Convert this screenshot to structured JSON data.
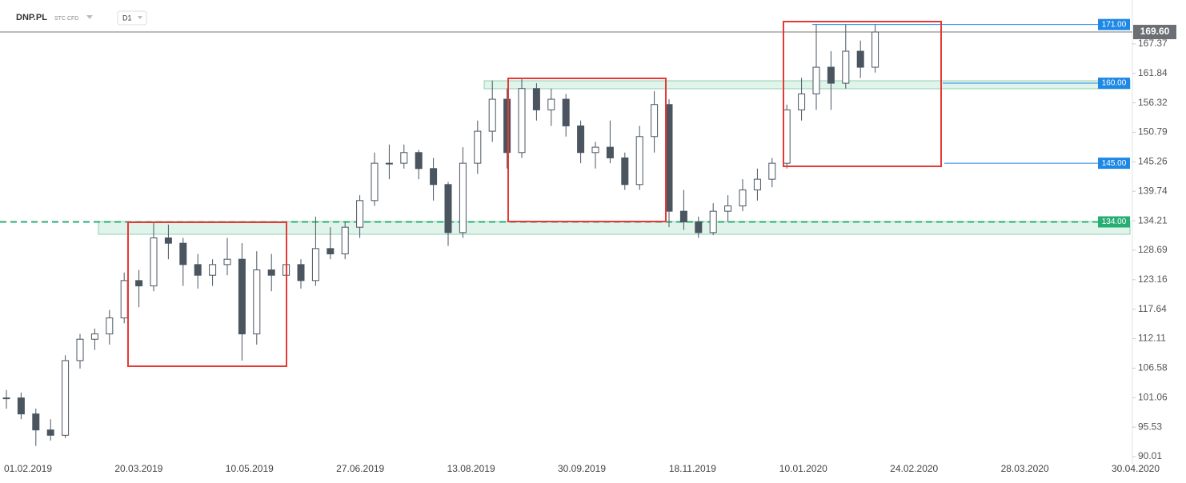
{
  "chart_data": {
    "type": "candlestick",
    "symbol": "DNP.PL",
    "instrument": "STC CFD",
    "timeframe": "D1",
    "x_labels": [
      "01.02.2019",
      "20.03.2019",
      "10.05.2019",
      "27.06.2019",
      "13.08.2019",
      "30.09.2019",
      "18.11.2019",
      "10.01.2020",
      "24.02.2020",
      "28.03.2020",
      "30.04.2020"
    ],
    "ohlc": [
      [
        101,
        102.5,
        99,
        101
      ],
      [
        101,
        102,
        97,
        98
      ],
      [
        98,
        99,
        92,
        95
      ],
      [
        95,
        97,
        93,
        94
      ],
      [
        94,
        109,
        93.5,
        108
      ],
      [
        108,
        113,
        106.5,
        112
      ],
      [
        112,
        114,
        110,
        113
      ],
      [
        113,
        117.5,
        111,
        116
      ],
      [
        116,
        124.5,
        115,
        123
      ],
      [
        123,
        125,
        118,
        122
      ],
      [
        122,
        134,
        121,
        131
      ],
      [
        131,
        133.5,
        127,
        130
      ],
      [
        130,
        131,
        122,
        126
      ],
      [
        126,
        128,
        121.5,
        124
      ],
      [
        124,
        127,
        122,
        126
      ],
      [
        126,
        131,
        124,
        127
      ],
      [
        127,
        130,
        108,
        113
      ],
      [
        113,
        128.5,
        111,
        125
      ],
      [
        125,
        128,
        121,
        124
      ],
      [
        124,
        127.5,
        122,
        126
      ],
      [
        126,
        127,
        121.5,
        123
      ],
      [
        123,
        135,
        122,
        129
      ],
      [
        129,
        133,
        127,
        128
      ],
      [
        128,
        134,
        127,
        133
      ],
      [
        133,
        139,
        131,
        138
      ],
      [
        138,
        147,
        137,
        145
      ],
      [
        145,
        148.5,
        142,
        145
      ],
      [
        145,
        148.5,
        144,
        147
      ],
      [
        147,
        147.5,
        142,
        144
      ],
      [
        144,
        146,
        138,
        141
      ],
      [
        141,
        141.5,
        129.5,
        132
      ],
      [
        132,
        148,
        131,
        145
      ],
      [
        145,
        153,
        143,
        151
      ],
      [
        151,
        160.5,
        149,
        157
      ],
      [
        157,
        159,
        144,
        147
      ],
      [
        147,
        161,
        146,
        159
      ],
      [
        159,
        160,
        153,
        155
      ],
      [
        155,
        159,
        152,
        157
      ],
      [
        157,
        158,
        150,
        152
      ],
      [
        152,
        153,
        145,
        147
      ],
      [
        147,
        149,
        144,
        148
      ],
      [
        148,
        153,
        145,
        146
      ],
      [
        146,
        147,
        140,
        141
      ],
      [
        141,
        152,
        140,
        150
      ],
      [
        150,
        158.5,
        147,
        156
      ],
      [
        156,
        157,
        133,
        136
      ],
      [
        136,
        140,
        132.5,
        134
      ],
      [
        134,
        135,
        131,
        132
      ],
      [
        132,
        137.5,
        131.5,
        136
      ],
      [
        136,
        139,
        134,
        137
      ],
      [
        137,
        142,
        136,
        140
      ],
      [
        140,
        144,
        138,
        142
      ],
      [
        142,
        146,
        140.5,
        145
      ],
      [
        145,
        156,
        144,
        155
      ],
      [
        155,
        161,
        153,
        158
      ],
      [
        158,
        171,
        155,
        163
      ],
      [
        163,
        166,
        155,
        160
      ],
      [
        160,
        171,
        159,
        166
      ],
      [
        166,
        168,
        161,
        163
      ],
      [
        163,
        171,
        162,
        169.6
      ]
    ],
    "up_color": "#ffffff",
    "down_color": "#4a5560",
    "ylim": [
      89.4,
      175.6
    ],
    "yticks": [
      90.01,
      95.53,
      101.06,
      106.58,
      112.11,
      117.64,
      123.16,
      128.69,
      134.21,
      139.74,
      145.26,
      150.79,
      156.32,
      161.84,
      167.37
    ],
    "levels": [
      {
        "value": 171,
        "label": "171.00",
        "color": "#1e88e5",
        "style": "solid"
      },
      {
        "value": 160,
        "label": "160.00",
        "color": "#1e88e5",
        "style": "solid"
      },
      {
        "value": 145,
        "label": "145.00",
        "color": "#1e88e5",
        "style": "solid"
      },
      {
        "value": 134,
        "label": "134.00",
        "color": "#27ae74",
        "style": "dashed"
      }
    ],
    "last_price": {
      "value": 169.6,
      "label": "169.60",
      "color": "#6b6f73"
    }
  }
}
